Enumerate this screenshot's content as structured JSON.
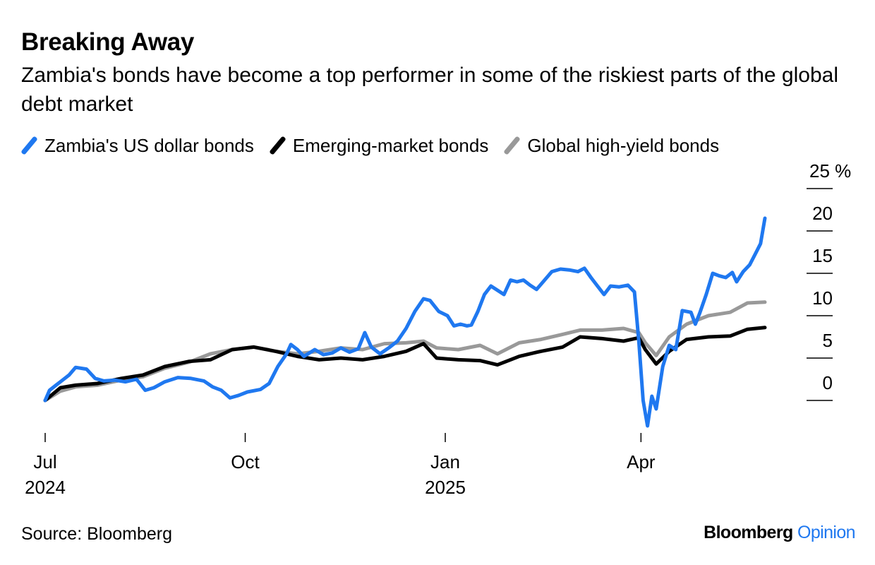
{
  "header": {
    "title": "Breaking Away",
    "subtitle": "Zambia's bonds have become a top performer in some of the riskiest parts of the global debt market"
  },
  "footer": {
    "source": "Source: Bloomberg",
    "brand_primary": "Bloomberg",
    "brand_secondary": "Opinion"
  },
  "chart_data": {
    "type": "line",
    "title": "Breaking Away",
    "subtitle": "Zambia's bonds have become a top performer in some of the riskiest parts of the global debt market",
    "xlabel": "",
    "ylabel": "",
    "x_range": [
      "2024-07-01",
      "2025-05-28"
    ],
    "ylim": [
      -3,
      25
    ],
    "y_unit": "%",
    "y_ticks": [
      0,
      5,
      10,
      15,
      20,
      25
    ],
    "y_tick_labels": [
      "0",
      "5",
      "10",
      "15",
      "20",
      "25 %"
    ],
    "y_axis_position": "right",
    "x_ticks": [
      {
        "date": "2024-07-01",
        "label": "Jul",
        "year": "2024"
      },
      {
        "date": "2024-10-01",
        "label": "Oct",
        "year": ""
      },
      {
        "date": "2025-01-01",
        "label": "Jan",
        "year": "2025"
      },
      {
        "date": "2025-04-01",
        "label": "Apr",
        "year": ""
      }
    ],
    "grid": false,
    "legend_position": "top-left",
    "series": [
      {
        "name": "Zambia's US dollar bonds",
        "color": "#1f78f0",
        "points": [
          [
            "2024-07-01",
            0.0
          ],
          [
            "2024-07-03",
            1.2
          ],
          [
            "2024-07-06",
            1.8
          ],
          [
            "2024-07-09",
            2.4
          ],
          [
            "2024-07-12",
            3.0
          ],
          [
            "2024-07-15",
            3.9
          ],
          [
            "2024-07-20",
            3.7
          ],
          [
            "2024-07-24",
            2.6
          ],
          [
            "2024-07-28",
            2.3
          ],
          [
            "2024-08-02",
            2.4
          ],
          [
            "2024-08-07",
            2.2
          ],
          [
            "2024-08-12",
            2.5
          ],
          [
            "2024-08-16",
            1.2
          ],
          [
            "2024-08-20",
            1.5
          ],
          [
            "2024-08-25",
            2.2
          ],
          [
            "2024-08-31",
            2.7
          ],
          [
            "2024-09-06",
            2.6
          ],
          [
            "2024-09-12",
            2.3
          ],
          [
            "2024-09-16",
            1.6
          ],
          [
            "2024-09-20",
            1.2
          ],
          [
            "2024-09-24",
            0.3
          ],
          [
            "2024-09-28",
            0.6
          ],
          [
            "2024-10-02",
            1.0
          ],
          [
            "2024-10-08",
            1.3
          ],
          [
            "2024-10-12",
            2.0
          ],
          [
            "2024-10-16",
            4.0
          ],
          [
            "2024-10-20",
            5.5
          ],
          [
            "2024-10-22",
            6.6
          ],
          [
            "2024-10-25",
            6.0
          ],
          [
            "2024-10-28",
            5.2
          ],
          [
            "2024-11-02",
            6.0
          ],
          [
            "2024-11-06",
            5.4
          ],
          [
            "2024-11-10",
            5.6
          ],
          [
            "2024-11-14",
            6.2
          ],
          [
            "2024-11-18",
            5.7
          ],
          [
            "2024-11-22",
            6.1
          ],
          [
            "2024-11-25",
            8.0
          ],
          [
            "2024-11-28",
            6.3
          ],
          [
            "2024-12-02",
            5.5
          ],
          [
            "2024-12-06",
            6.2
          ],
          [
            "2024-12-10",
            7.0
          ],
          [
            "2024-12-14",
            8.5
          ],
          [
            "2024-12-18",
            10.5
          ],
          [
            "2024-12-22",
            12.0
          ],
          [
            "2024-12-25",
            11.8
          ],
          [
            "2024-12-29",
            10.5
          ],
          [
            "2025-01-02",
            10.0
          ],
          [
            "2025-01-05",
            8.8
          ],
          [
            "2025-01-08",
            9.0
          ],
          [
            "2025-01-11",
            8.8
          ],
          [
            "2025-01-13",
            8.9
          ],
          [
            "2025-01-16",
            10.5
          ],
          [
            "2025-01-19",
            12.5
          ],
          [
            "2025-01-22",
            13.5
          ],
          [
            "2025-01-25",
            13.0
          ],
          [
            "2025-01-28",
            12.5
          ],
          [
            "2025-01-31",
            14.2
          ],
          [
            "2025-02-03",
            14.0
          ],
          [
            "2025-02-06",
            14.2
          ],
          [
            "2025-02-09",
            13.6
          ],
          [
            "2025-02-12",
            13.1
          ],
          [
            "2025-02-15",
            14.0
          ],
          [
            "2025-02-19",
            15.2
          ],
          [
            "2025-02-23",
            15.5
          ],
          [
            "2025-02-27",
            15.4
          ],
          [
            "2025-03-03",
            15.2
          ],
          [
            "2025-03-06",
            15.6
          ],
          [
            "2025-03-09",
            14.5
          ],
          [
            "2025-03-12",
            13.5
          ],
          [
            "2025-03-15",
            12.5
          ],
          [
            "2025-03-18",
            13.5
          ],
          [
            "2025-03-22",
            13.4
          ],
          [
            "2025-03-26",
            13.6
          ],
          [
            "2025-03-29",
            12.8
          ],
          [
            "2025-03-31",
            7.0
          ],
          [
            "2025-04-02",
            0.0
          ],
          [
            "2025-04-04",
            -3.0
          ],
          [
            "2025-04-06",
            0.5
          ],
          [
            "2025-04-08",
            -1.0
          ],
          [
            "2025-04-11",
            4.0
          ],
          [
            "2025-04-14",
            6.5
          ],
          [
            "2025-04-17",
            6.0
          ],
          [
            "2025-04-20",
            10.6
          ],
          [
            "2025-04-24",
            10.4
          ],
          [
            "2025-04-26",
            9.0
          ],
          [
            "2025-04-28",
            10.3
          ],
          [
            "2025-05-01",
            12.5
          ],
          [
            "2025-05-04",
            15.0
          ],
          [
            "2025-05-07",
            14.7
          ],
          [
            "2025-05-10",
            14.5
          ],
          [
            "2025-05-13",
            15.1
          ],
          [
            "2025-05-15",
            14.0
          ],
          [
            "2025-05-18",
            15.2
          ],
          [
            "2025-05-21",
            16.0
          ],
          [
            "2025-05-24",
            17.5
          ],
          [
            "2025-05-26",
            18.5
          ],
          [
            "2025-05-28",
            21.5
          ]
        ]
      },
      {
        "name": "Emerging-market bonds",
        "color": "#000000",
        "points": [
          [
            "2024-07-01",
            0.0
          ],
          [
            "2024-07-08",
            1.5
          ],
          [
            "2024-07-15",
            1.8
          ],
          [
            "2024-07-25",
            2.0
          ],
          [
            "2024-08-05",
            2.6
          ],
          [
            "2024-08-15",
            3.0
          ],
          [
            "2024-08-25",
            4.0
          ],
          [
            "2024-09-05",
            4.6
          ],
          [
            "2024-09-15",
            4.8
          ],
          [
            "2024-09-25",
            6.0
          ],
          [
            "2024-10-05",
            6.3
          ],
          [
            "2024-10-15",
            5.8
          ],
          [
            "2024-10-25",
            5.2
          ],
          [
            "2024-11-04",
            4.8
          ],
          [
            "2024-11-14",
            5.0
          ],
          [
            "2024-11-24",
            4.8
          ],
          [
            "2024-12-04",
            5.2
          ],
          [
            "2024-12-14",
            5.8
          ],
          [
            "2024-12-22",
            6.7
          ],
          [
            "2024-12-28",
            5.0
          ],
          [
            "2025-01-07",
            4.8
          ],
          [
            "2025-01-17",
            4.7
          ],
          [
            "2025-01-25",
            4.2
          ],
          [
            "2025-02-04",
            5.2
          ],
          [
            "2025-02-14",
            5.8
          ],
          [
            "2025-02-24",
            6.3
          ],
          [
            "2025-03-04",
            7.5
          ],
          [
            "2025-03-14",
            7.3
          ],
          [
            "2025-03-24",
            7.0
          ],
          [
            "2025-03-31",
            7.4
          ],
          [
            "2025-04-03",
            6.0
          ],
          [
            "2025-04-08",
            4.3
          ],
          [
            "2025-04-14",
            5.8
          ],
          [
            "2025-04-22",
            7.2
          ],
          [
            "2025-05-02",
            7.5
          ],
          [
            "2025-05-12",
            7.6
          ],
          [
            "2025-05-20",
            8.4
          ],
          [
            "2025-05-28",
            8.6
          ]
        ]
      },
      {
        "name": "Global high-yield bonds",
        "color": "#999999",
        "points": [
          [
            "2024-07-01",
            0.0
          ],
          [
            "2024-07-08",
            1.1
          ],
          [
            "2024-07-15",
            1.6
          ],
          [
            "2024-07-25",
            1.8
          ],
          [
            "2024-08-05",
            2.4
          ],
          [
            "2024-08-15",
            2.8
          ],
          [
            "2024-08-25",
            3.8
          ],
          [
            "2024-09-05",
            4.5
          ],
          [
            "2024-09-15",
            5.5
          ],
          [
            "2024-09-25",
            6.0
          ],
          [
            "2024-10-05",
            6.3
          ],
          [
            "2024-10-15",
            5.8
          ],
          [
            "2024-10-25",
            5.5
          ],
          [
            "2024-11-04",
            5.8
          ],
          [
            "2024-11-14",
            6.2
          ],
          [
            "2024-11-24",
            6.0
          ],
          [
            "2024-12-04",
            6.7
          ],
          [
            "2024-12-14",
            6.8
          ],
          [
            "2024-12-22",
            7.0
          ],
          [
            "2024-12-28",
            6.2
          ],
          [
            "2025-01-07",
            6.0
          ],
          [
            "2025-01-17",
            6.5
          ],
          [
            "2025-01-25",
            5.5
          ],
          [
            "2025-02-04",
            6.8
          ],
          [
            "2025-02-14",
            7.2
          ],
          [
            "2025-02-24",
            7.8
          ],
          [
            "2025-03-04",
            8.3
          ],
          [
            "2025-03-14",
            8.3
          ],
          [
            "2025-03-24",
            8.5
          ],
          [
            "2025-03-31",
            8.0
          ],
          [
            "2025-04-03",
            6.8
          ],
          [
            "2025-04-08",
            5.3
          ],
          [
            "2025-04-14",
            7.5
          ],
          [
            "2025-04-22",
            9.0
          ],
          [
            "2025-05-02",
            10.0
          ],
          [
            "2025-05-12",
            10.4
          ],
          [
            "2025-05-20",
            11.5
          ],
          [
            "2025-05-28",
            11.6
          ]
        ]
      }
    ]
  }
}
